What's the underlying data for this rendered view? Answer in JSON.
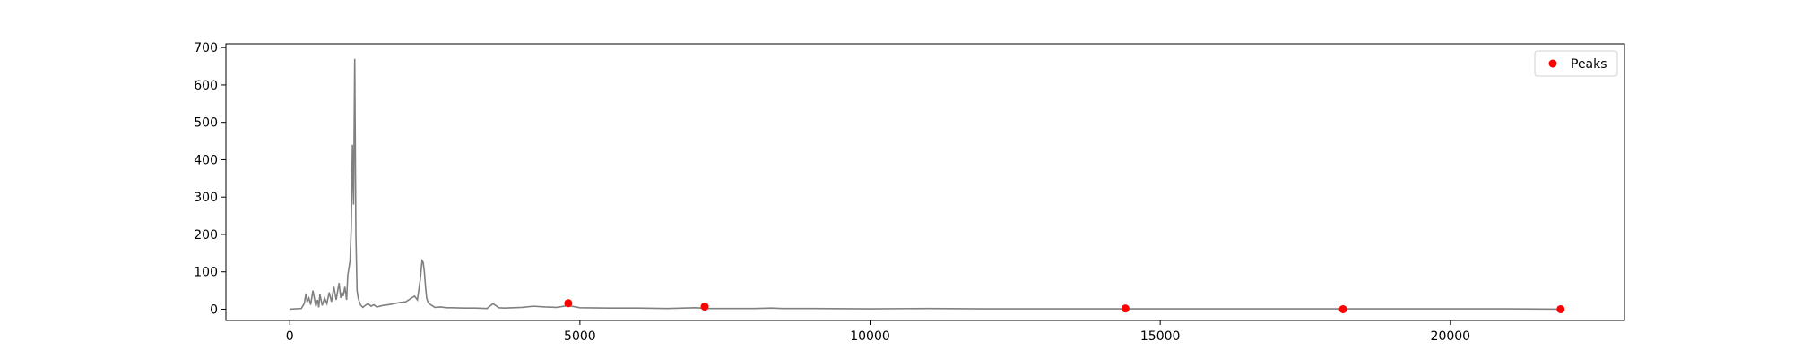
{
  "chart_data": {
    "type": "line",
    "xlim": [
      -1100,
      23000
    ],
    "ylim": [
      -30,
      710
    ],
    "x_ticks": [
      0,
      5000,
      10000,
      15000,
      20000
    ],
    "y_ticks": [
      0,
      100,
      200,
      300,
      400,
      500,
      600,
      700
    ],
    "grid": false,
    "legend": {
      "placement": "top-right",
      "entries": [
        "Peaks"
      ]
    },
    "colors": {
      "signal": "#808080",
      "peaks": "#ff0000",
      "axes": "#000000"
    },
    "series": [
      {
        "type": "line",
        "x": [
          0,
          200,
          250,
          280,
          300,
          330,
          360,
          400,
          450,
          480,
          500,
          520,
          560,
          600,
          640,
          680,
          720,
          760,
          800,
          850,
          880,
          900,
          920,
          950,
          980,
          1000,
          1020,
          1040,
          1060,
          1080,
          1100,
          1120,
          1140,
          1160,
          1170,
          1180,
          1190,
          1200,
          1210,
          1220,
          1240,
          1260,
          1300,
          1350,
          1400,
          1450,
          1500,
          1600,
          1700,
          1800,
          1900,
          2000,
          2100,
          2150,
          2200,
          2250,
          2280,
          2300,
          2320,
          2340,
          2360,
          2380,
          2400,
          2450,
          2500,
          2600,
          2700,
          2800,
          3000,
          3200,
          3400,
          3500,
          3550,
          3600,
          3700,
          4000,
          4200,
          4400,
          4600,
          4800,
          5000,
          5500,
          6000,
          6500,
          7000,
          7200,
          8000,
          8300,
          8500,
          9000,
          10000,
          11000,
          12000,
          13000,
          14000,
          14400,
          15000,
          16000,
          17000,
          18000,
          18100,
          19000,
          20000,
          21000,
          21900
        ],
        "y": [
          0,
          2,
          15,
          42,
          20,
          30,
          12,
          50,
          8,
          25,
          5,
          40,
          10,
          30,
          15,
          45,
          20,
          60,
          25,
          70,
          30,
          45,
          35,
          60,
          25,
          90,
          110,
          130,
          220,
          440,
          280,
          670,
          200,
          50,
          40,
          30,
          25,
          20,
          15,
          12,
          8,
          5,
          10,
          15,
          8,
          12,
          6,
          10,
          12,
          15,
          18,
          20,
          30,
          35,
          25,
          80,
          130,
          125,
          100,
          60,
          30,
          20,
          15,
          10,
          5,
          6,
          4,
          4,
          3,
          3,
          2,
          15,
          10,
          4,
          3,
          5,
          8,
          6,
          5,
          10,
          4,
          3,
          3,
          2,
          4,
          2,
          2,
          3,
          2,
          2,
          1,
          2,
          1,
          1,
          1,
          1,
          1,
          1,
          1,
          1,
          1,
          1,
          1,
          1,
          0
        ]
      },
      {
        "name": "Peaks",
        "type": "scatter",
        "x": [
          4800,
          7150,
          14400,
          18150,
          21900
        ],
        "y": [
          16,
          7,
          2,
          0,
          0
        ]
      }
    ]
  }
}
